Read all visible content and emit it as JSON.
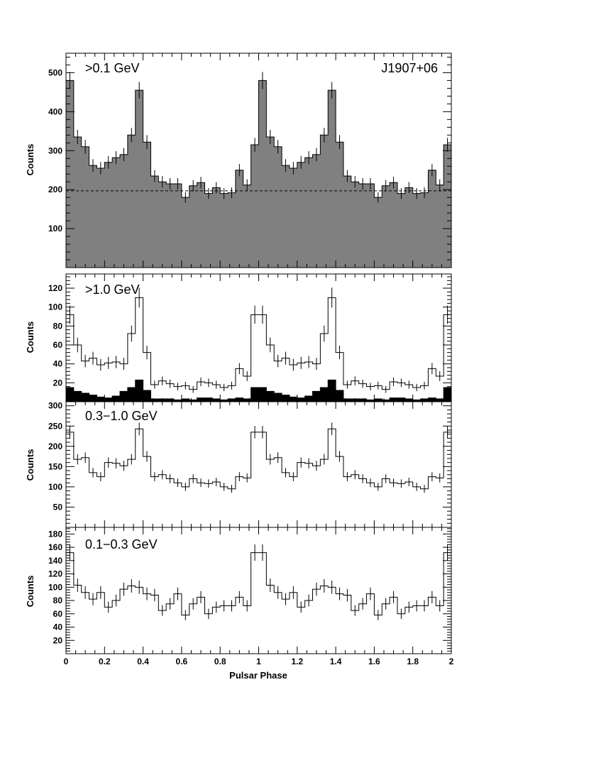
{
  "chart_data": {
    "type": "histogram",
    "source_label": "J1907+06",
    "xlabel": "Pulsar Phase",
    "xlim": [
      0,
      2
    ],
    "x_ticks": [
      "0",
      "0.2",
      "0.4",
      "0.6",
      "0.8",
      "1",
      "1.2",
      "1.4",
      "1.6",
      "1.8",
      "2"
    ],
    "bins_per_cycle": 25,
    "colors": {
      "fill": "#808080",
      "line": "#000000",
      "solid": "#000000"
    },
    "panels": [
      {
        "label": ">0.1 GeV",
        "ylabel": "Counts",
        "ylim": [
          0,
          550
        ],
        "y_ticks": [
          100,
          200,
          300,
          400,
          500
        ],
        "background_level": 197,
        "filled": true,
        "counts": [
          480,
          335,
          310,
          262,
          255,
          270,
          282,
          290,
          340,
          455,
          322,
          235,
          220,
          215,
          215,
          180,
          210,
          218,
          190,
          205,
          190,
          192,
          250,
          212,
          315
        ]
      },
      {
        "label": ">1.0 GeV",
        "ylabel": "Counts",
        "ylim": [
          0,
          135
        ],
        "y_ticks": [
          20,
          40,
          60,
          80,
          100,
          120
        ],
        "counts": [
          92,
          60,
          43,
          46,
          39,
          41,
          42,
          40,
          72,
          110,
          52,
          18,
          22,
          19,
          16,
          17,
          13,
          21,
          20,
          18,
          15,
          17,
          35,
          27,
          92
        ],
        "high_energy_counts": [
          15,
          11,
          9,
          7,
          5,
          4,
          6,
          11,
          15,
          23,
          12,
          3,
          3,
          3,
          2,
          3,
          2,
          4,
          4,
          3,
          2,
          3,
          4,
          3,
          15
        ]
      },
      {
        "label": "0.3−1.0 GeV",
        "ylabel": "Counts",
        "ylim": [
          0,
          310
        ],
        "y_ticks": [
          50,
          100,
          150,
          200,
          250,
          300
        ],
        "counts": [
          235,
          168,
          172,
          135,
          125,
          160,
          158,
          152,
          168,
          243,
          175,
          125,
          130,
          120,
          110,
          100,
          120,
          110,
          108,
          112,
          100,
          95,
          125,
          122,
          235
        ]
      },
      {
        "label": "0.1−0.3 GeV",
        "ylabel": "Counts",
        "ylim": [
          0,
          190
        ],
        "y_ticks": [
          20,
          40,
          60,
          80,
          100,
          120,
          140,
          160,
          180
        ],
        "counts": [
          152,
          103,
          92,
          82,
          92,
          70,
          80,
          97,
          102,
          100,
          90,
          88,
          65,
          75,
          90,
          58,
          75,
          85,
          60,
          70,
          72,
          72,
          85,
          72,
          152
        ]
      }
    ]
  }
}
